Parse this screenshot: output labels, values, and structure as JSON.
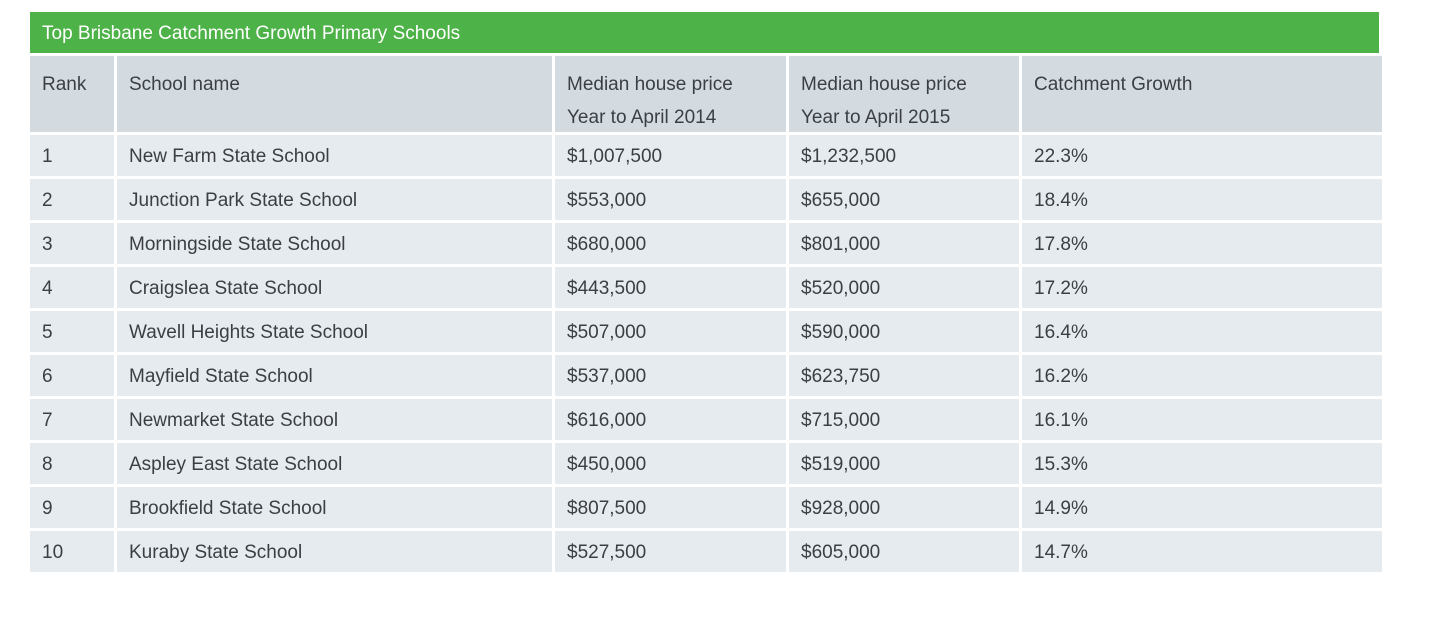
{
  "table": {
    "title": "Top Brisbane Catchment Growth Primary Schools",
    "headers": [
      {
        "line1": "Rank",
        "line2": ""
      },
      {
        "line1": "School name",
        "line2": ""
      },
      {
        "line1": "Median house price",
        "line2": "Year to April 2014"
      },
      {
        "line1": "Median house price",
        "line2": "Year to April 2015"
      },
      {
        "line1": "Catchment Growth",
        "line2": ""
      }
    ],
    "rows": [
      [
        "1",
        "New Farm State School",
        "$1,007,500",
        "$1,232,500",
        "22.3%"
      ],
      [
        "2",
        "Junction Park State School",
        "$553,000",
        "$655,000",
        "18.4%"
      ],
      [
        "3",
        "Morningside State School",
        "$680,000",
        "$801,000",
        "17.8%"
      ],
      [
        "4",
        "Craigslea State School",
        "$443,500",
        "$520,000",
        "17.2%"
      ],
      [
        "5",
        "Wavell Heights State School",
        "$507,000",
        "$590,000",
        "16.4%"
      ],
      [
        "6",
        "Mayfield State School",
        "$537,000",
        "$623,750",
        "16.2%"
      ],
      [
        "7",
        "Newmarket State School",
        "$616,000",
        "$715,000",
        "16.1%"
      ],
      [
        "8",
        "Aspley East State School",
        "$450,000",
        "$519,000",
        "15.3%"
      ],
      [
        "9",
        "Brookfield State School",
        "$807,500",
        "$928,000",
        "14.9%"
      ],
      [
        "10",
        "Kuraby State School",
        "$527,500",
        "$605,000",
        "14.7%"
      ]
    ],
    "colors": {
      "title_bg": "#4db247",
      "header_bg": "#d3dbe1",
      "row_bg": "#e6ebef",
      "text": "#3b3f44"
    }
  }
}
